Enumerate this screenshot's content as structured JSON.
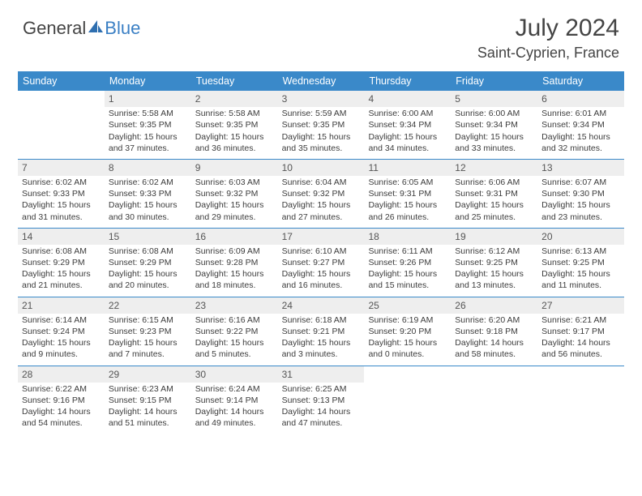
{
  "brand": {
    "text1": "General",
    "text2": "Blue"
  },
  "colors": {
    "header_blue": "#3a89c9",
    "logo_blue": "#3a7fc4",
    "text_gray": "#444444",
    "cell_text": "#3c3c3c",
    "daynum_bg": "#eeeeee"
  },
  "title": "July 2024",
  "location": "Saint-Cyprien, France",
  "weekdays": [
    "Sunday",
    "Monday",
    "Tuesday",
    "Wednesday",
    "Thursday",
    "Friday",
    "Saturday"
  ],
  "month": {
    "start_weekday": 1,
    "num_days": 31
  },
  "days": {
    "1": {
      "sunrise": "5:58 AM",
      "sunset": "9:35 PM",
      "daylight": "15 hours and 37 minutes."
    },
    "2": {
      "sunrise": "5:58 AM",
      "sunset": "9:35 PM",
      "daylight": "15 hours and 36 minutes."
    },
    "3": {
      "sunrise": "5:59 AM",
      "sunset": "9:35 PM",
      "daylight": "15 hours and 35 minutes."
    },
    "4": {
      "sunrise": "6:00 AM",
      "sunset": "9:34 PM",
      "daylight": "15 hours and 34 minutes."
    },
    "5": {
      "sunrise": "6:00 AM",
      "sunset": "9:34 PM",
      "daylight": "15 hours and 33 minutes."
    },
    "6": {
      "sunrise": "6:01 AM",
      "sunset": "9:34 PM",
      "daylight": "15 hours and 32 minutes."
    },
    "7": {
      "sunrise": "6:02 AM",
      "sunset": "9:33 PM",
      "daylight": "15 hours and 31 minutes."
    },
    "8": {
      "sunrise": "6:02 AM",
      "sunset": "9:33 PM",
      "daylight": "15 hours and 30 minutes."
    },
    "9": {
      "sunrise": "6:03 AM",
      "sunset": "9:32 PM",
      "daylight": "15 hours and 29 minutes."
    },
    "10": {
      "sunrise": "6:04 AM",
      "sunset": "9:32 PM",
      "daylight": "15 hours and 27 minutes."
    },
    "11": {
      "sunrise": "6:05 AM",
      "sunset": "9:31 PM",
      "daylight": "15 hours and 26 minutes."
    },
    "12": {
      "sunrise": "6:06 AM",
      "sunset": "9:31 PM",
      "daylight": "15 hours and 25 minutes."
    },
    "13": {
      "sunrise": "6:07 AM",
      "sunset": "9:30 PM",
      "daylight": "15 hours and 23 minutes."
    },
    "14": {
      "sunrise": "6:08 AM",
      "sunset": "9:29 PM",
      "daylight": "15 hours and 21 minutes."
    },
    "15": {
      "sunrise": "6:08 AM",
      "sunset": "9:29 PM",
      "daylight": "15 hours and 20 minutes."
    },
    "16": {
      "sunrise": "6:09 AM",
      "sunset": "9:28 PM",
      "daylight": "15 hours and 18 minutes."
    },
    "17": {
      "sunrise": "6:10 AM",
      "sunset": "9:27 PM",
      "daylight": "15 hours and 16 minutes."
    },
    "18": {
      "sunrise": "6:11 AM",
      "sunset": "9:26 PM",
      "daylight": "15 hours and 15 minutes."
    },
    "19": {
      "sunrise": "6:12 AM",
      "sunset": "9:25 PM",
      "daylight": "15 hours and 13 minutes."
    },
    "20": {
      "sunrise": "6:13 AM",
      "sunset": "9:25 PM",
      "daylight": "15 hours and 11 minutes."
    },
    "21": {
      "sunrise": "6:14 AM",
      "sunset": "9:24 PM",
      "daylight": "15 hours and 9 minutes."
    },
    "22": {
      "sunrise": "6:15 AM",
      "sunset": "9:23 PM",
      "daylight": "15 hours and 7 minutes."
    },
    "23": {
      "sunrise": "6:16 AM",
      "sunset": "9:22 PM",
      "daylight": "15 hours and 5 minutes."
    },
    "24": {
      "sunrise": "6:18 AM",
      "sunset": "9:21 PM",
      "daylight": "15 hours and 3 minutes."
    },
    "25": {
      "sunrise": "6:19 AM",
      "sunset": "9:20 PM",
      "daylight": "15 hours and 0 minutes."
    },
    "26": {
      "sunrise": "6:20 AM",
      "sunset": "9:18 PM",
      "daylight": "14 hours and 58 minutes."
    },
    "27": {
      "sunrise": "6:21 AM",
      "sunset": "9:17 PM",
      "daylight": "14 hours and 56 minutes."
    },
    "28": {
      "sunrise": "6:22 AM",
      "sunset": "9:16 PM",
      "daylight": "14 hours and 54 minutes."
    },
    "29": {
      "sunrise": "6:23 AM",
      "sunset": "9:15 PM",
      "daylight": "14 hours and 51 minutes."
    },
    "30": {
      "sunrise": "6:24 AM",
      "sunset": "9:14 PM",
      "daylight": "14 hours and 49 minutes."
    },
    "31": {
      "sunrise": "6:25 AM",
      "sunset": "9:13 PM",
      "daylight": "14 hours and 47 minutes."
    }
  },
  "labels": {
    "sunrise_prefix": "Sunrise: ",
    "sunset_prefix": "Sunset: ",
    "daylight_prefix": "Daylight: "
  }
}
